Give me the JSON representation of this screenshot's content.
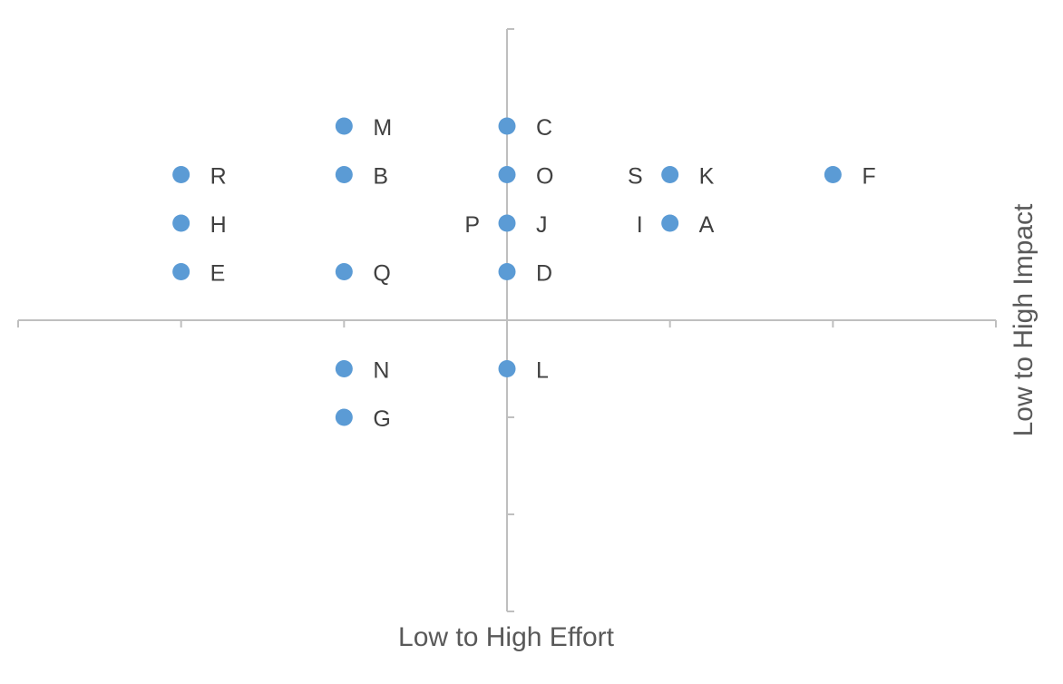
{
  "chart_data": {
    "type": "scatter",
    "title": "",
    "xlabel": "Low to High Effort",
    "ylabel": "Low to High Impact",
    "xlim": [
      -3,
      3
    ],
    "ylim": [
      -3,
      3
    ],
    "grid": false,
    "points": [
      {
        "label": "M",
        "x": -1,
        "y": 2,
        "label_side": "right"
      },
      {
        "label": "C",
        "x": 0,
        "y": 2,
        "label_side": "right"
      },
      {
        "label": "R",
        "x": -2,
        "y": 1.5,
        "label_side": "right"
      },
      {
        "label": "B",
        "x": -1,
        "y": 1.5,
        "label_side": "right"
      },
      {
        "label": "O",
        "x": 0,
        "y": 1.5,
        "label_side": "right"
      },
      {
        "label": "K",
        "x": 1,
        "y": 1.5,
        "label_side": "right"
      },
      {
        "label": "S",
        "x": 1,
        "y": 1.5,
        "label_side": "left"
      },
      {
        "label": "F",
        "x": 2,
        "y": 1.5,
        "label_side": "right"
      },
      {
        "label": "H",
        "x": -2,
        "y": 1,
        "label_side": "right"
      },
      {
        "label": "J",
        "x": 0,
        "y": 1,
        "label_side": "right"
      },
      {
        "label": "P",
        "x": 0,
        "y": 1,
        "label_side": "left"
      },
      {
        "label": "A",
        "x": 1,
        "y": 1,
        "label_side": "right"
      },
      {
        "label": "I",
        "x": 1,
        "y": 1,
        "label_side": "left"
      },
      {
        "label": "E",
        "x": -2,
        "y": 0.5,
        "label_side": "right"
      },
      {
        "label": "Q",
        "x": -1,
        "y": 0.5,
        "label_side": "right"
      },
      {
        "label": "D",
        "x": 0,
        "y": 0.5,
        "label_side": "right"
      },
      {
        "label": "N",
        "x": -1,
        "y": -0.5,
        "label_side": "right"
      },
      {
        "label": "L",
        "x": 0,
        "y": -0.5,
        "label_side": "right"
      },
      {
        "label": "G",
        "x": -1,
        "y": -1,
        "label_side": "right"
      }
    ],
    "colors": {
      "marker": "#5b9bd5",
      "axis": "#bfbfbf",
      "label": "#404040",
      "title": "#595959"
    }
  }
}
